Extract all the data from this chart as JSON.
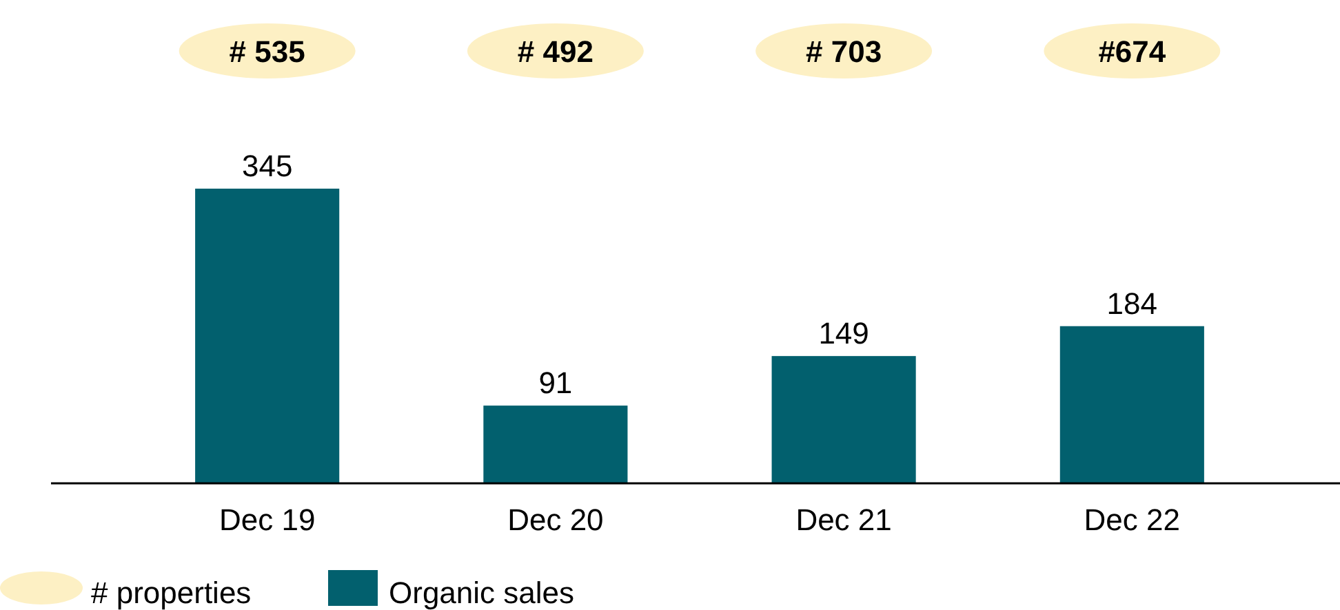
{
  "chart_data": {
    "type": "bar",
    "categories": [
      "Dec 19",
      "Dec 20",
      "Dec 21",
      "Dec 22"
    ],
    "series": [
      {
        "name": "Organic sales",
        "color": "#02606e",
        "values": [
          345,
          91,
          149,
          184
        ]
      }
    ],
    "annotations": [
      "# 535",
      "# 492",
      "# 703",
      "#674",
      "# properties"
    ],
    "data_labels": true,
    "legend": "bottom left"
  }
}
